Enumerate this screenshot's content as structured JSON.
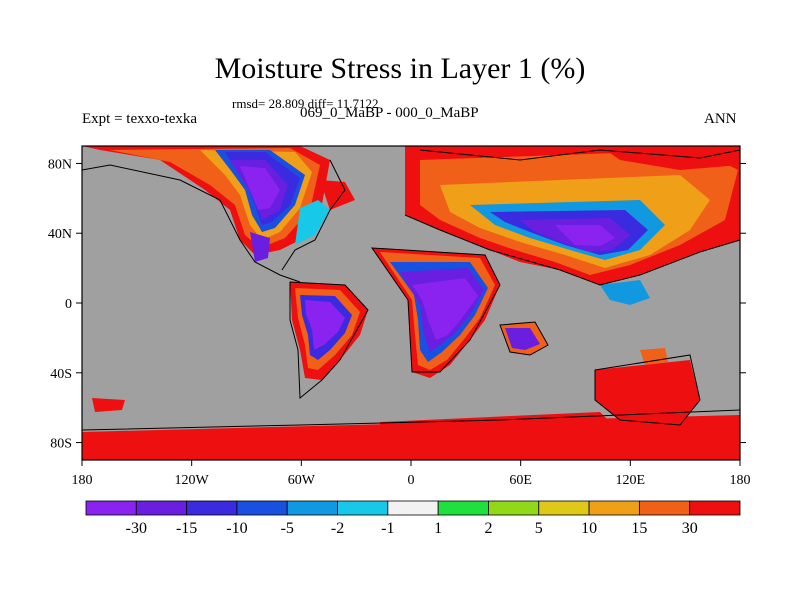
{
  "title": "Moisture Stress in Layer 1 (%)",
  "stats": "rmsd= 28.809 diff= 11.7122",
  "left_label": "Expt = texxo-texka",
  "center_label": "069_0_MaBP - 000_0_MaBP",
  "right_label": "ANN",
  "y_ticks": [
    "80N",
    "40N",
    "0",
    "40S",
    "80S"
  ],
  "x_ticks": [
    "180",
    "120W",
    "60W",
    "0",
    "60E",
    "120E",
    "180"
  ],
  "colorbar": {
    "colors": [
      "#8a22f0",
      "#6a1ee0",
      "#3a2ae0",
      "#1850e0",
      "#1098e0",
      "#18c8e8",
      "#f2f2f2",
      "#20e040",
      "#90d818",
      "#e0c818",
      "#f0a018",
      "#f06018",
      "#ee1010"
    ],
    "labels": [
      "-30",
      "-15",
      "-10",
      "-5",
      "-2",
      "-1",
      "1",
      "2",
      "5",
      "10",
      "15",
      "30"
    ]
  },
  "colors": {
    "land_mask": "#a0a0a0",
    "coast": "#000000"
  }
}
